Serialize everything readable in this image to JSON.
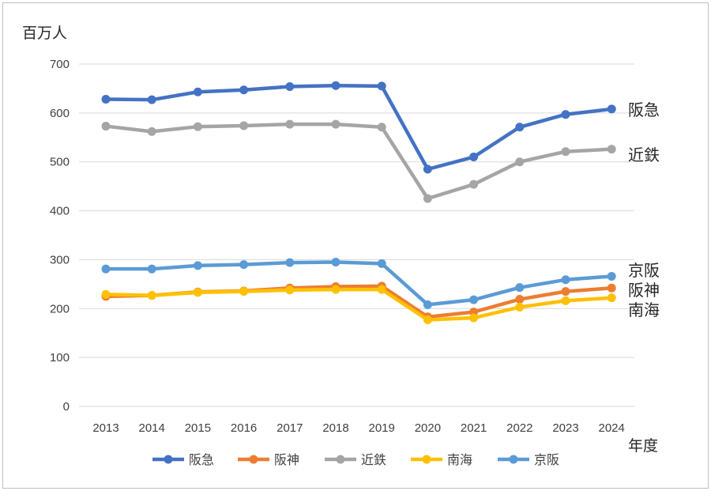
{
  "chart_data": {
    "type": "line",
    "ylabel": "百万人",
    "xlabel": "年度",
    "ylim": [
      0,
      700
    ],
    "yticks": [
      0,
      100,
      200,
      300,
      400,
      500,
      600,
      700
    ],
    "categories": [
      "2013",
      "2014",
      "2015",
      "2016",
      "2017",
      "2018",
      "2019",
      "2020",
      "2021",
      "2022",
      "2023",
      "2024"
    ],
    "grid": true,
    "legend_position": "bottom",
    "series": [
      {
        "name": "阪急",
        "color": "#4472c4",
        "values": [
          628,
          627,
          643,
          647,
          654,
          656,
          655,
          485,
          510,
          571,
          597,
          608
        ]
      },
      {
        "name": "阪神",
        "color": "#ed7d31",
        "values": [
          225,
          227,
          234,
          236,
          242,
          245,
          246,
          183,
          193,
          219,
          235,
          242
        ]
      },
      {
        "name": "近鉄",
        "color": "#a5a5a5",
        "values": [
          573,
          562,
          572,
          574,
          577,
          577,
          571,
          425,
          454,
          500,
          521,
          526
        ]
      },
      {
        "name": "南海",
        "color": "#ffc000",
        "values": [
          229,
          227,
          233,
          235,
          238,
          239,
          239,
          177,
          181,
          203,
          216,
          222
        ]
      },
      {
        "name": "京阪",
        "color": "#5b9bd5",
        "values": [
          281,
          281,
          288,
          290,
          294,
          295,
          292,
          208,
          218,
          243,
          259,
          266
        ]
      }
    ],
    "end_labels": [
      {
        "series": "阪急",
        "text": "阪急"
      },
      {
        "series": "近鉄",
        "text": "近鉄"
      },
      {
        "series": "京阪",
        "text": "京阪"
      },
      {
        "series": "阪神",
        "text": "阪神"
      },
      {
        "series": "南海",
        "text": "南海"
      }
    ]
  }
}
